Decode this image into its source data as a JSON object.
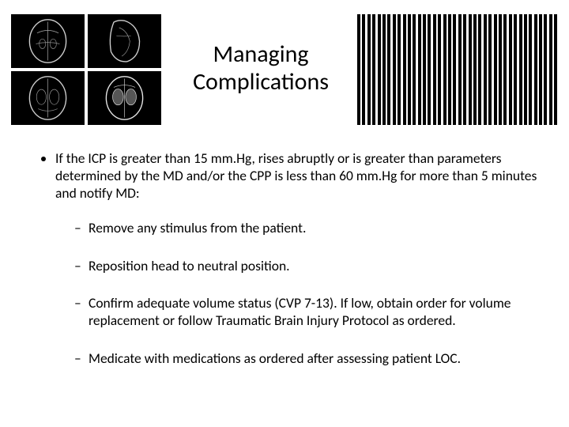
{
  "title_line1": "Managing",
  "title_line2": "Complications",
  "title_fontsize": 30,
  "title_color": "#000000",
  "body_fontsize": 17.5,
  "body_color": "#000000",
  "background_color": "#ffffff",
  "main_bullet": "If the ICP is greater than 15 mm.Hg, rises abruptly or is greater than parameters determined by the MD and/or the CPP is less than 60 mm.Hg for more than 5 minutes and notify MD:",
  "sub_bullets": [
    "Remove any stimulus from the patient.",
    "Reposition head to neutral position.",
    "Confirm adequate volume status (CVP 7-13). If low, obtain order for volume replacement or follow Traumatic Brain Injury Protocol as ordered.",
    "Medicate with medications as ordered after assessing patient LOC."
  ],
  "brain_images": {
    "count": 4,
    "grid": "2x2",
    "background": "#000000",
    "stroke": "#d0d0d0"
  },
  "barcode": {
    "bar_count": 40,
    "color": "#000000",
    "gap_color": "#ffffff"
  }
}
